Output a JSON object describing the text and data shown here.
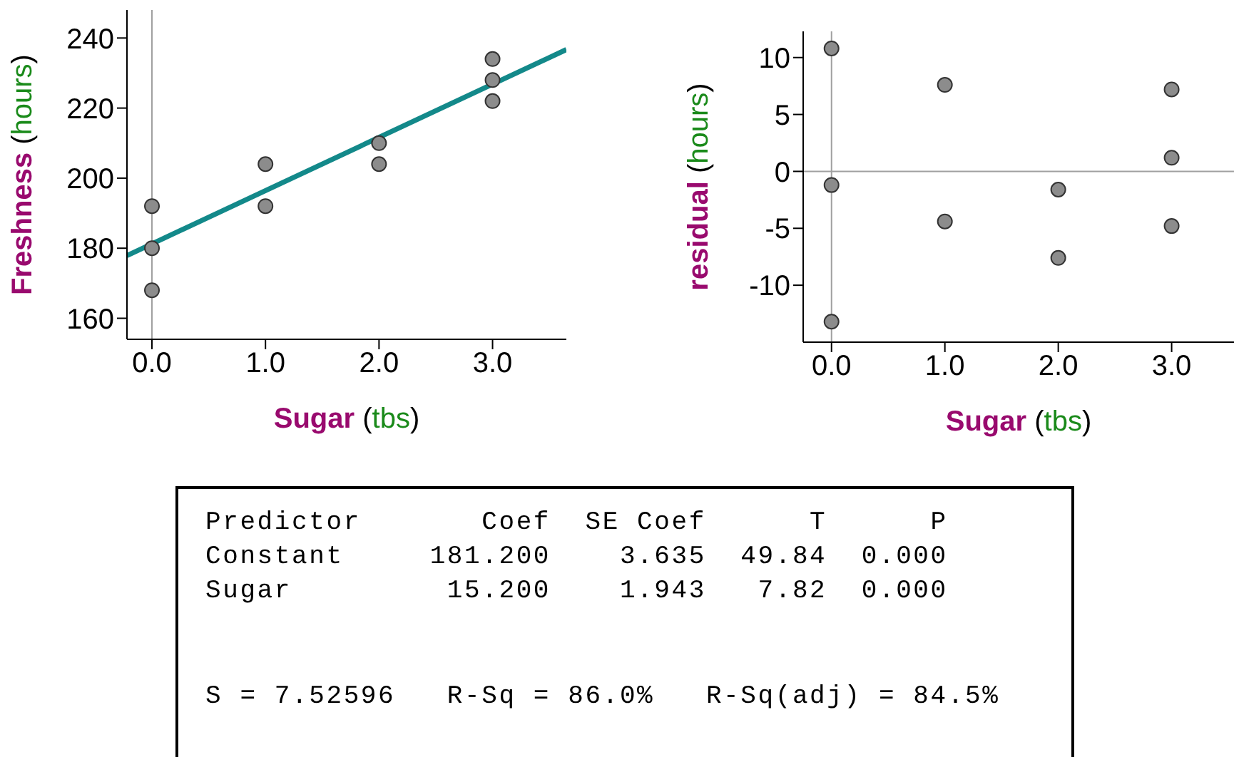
{
  "chart_data": [
    {
      "type": "scatter",
      "xlabel": "Sugar (tbs)",
      "ylabel": "Freshness (hours)",
      "xlim": [
        -0.22,
        3.65
      ],
      "ylim": [
        154,
        248
      ],
      "xticks": [
        {
          "value": 0,
          "label": "0.0"
        },
        {
          "value": 1,
          "label": "1.0"
        },
        {
          "value": 2,
          "label": "2.0"
        },
        {
          "value": 3,
          "label": "3.0"
        }
      ],
      "yticks": [
        160,
        180,
        200,
        220,
        240
      ],
      "grid": false,
      "marker": "circle",
      "series": [
        {
          "color": "#8c8c8c",
          "x": [
            0,
            0,
            0,
            1,
            1,
            2,
            2,
            3,
            3,
            3
          ],
          "values": [
            192,
            180,
            168,
            204,
            192,
            210,
            204,
            234,
            228,
            222
          ]
        },
        {
          "type": "line",
          "marker": "none",
          "color": "#13898a",
          "x": [
            -0.22,
            3.65
          ],
          "values": [
            177.9,
            236.7
          ]
        }
      ],
      "ref_lines": [
        {
          "axis": "x",
          "value": 0,
          "color": "#a0a0a0"
        }
      ]
    },
    {
      "type": "scatter",
      "xlabel": "Sugar (tbs)",
      "ylabel": "residual (hours)",
      "xlim": [
        -0.25,
        3.55
      ],
      "ylim": [
        -15,
        12.3
      ],
      "xticks": [
        {
          "value": 0,
          "label": "0.0"
        },
        {
          "value": 1,
          "label": "1.0"
        },
        {
          "value": 2,
          "label": "2.0"
        },
        {
          "value": 3,
          "label": "3.0"
        }
      ],
      "yticks": [
        -10,
        -5,
        0,
        5,
        10
      ],
      "grid": false,
      "marker": "circle",
      "series": [
        {
          "color": "#8c8c8c",
          "x": [
            0,
            0,
            0,
            1,
            1,
            2,
            2,
            3,
            3,
            3
          ],
          "values": [
            10.8,
            -1.2,
            -13.2,
            7.6,
            -4.4,
            -1.6,
            -7.6,
            7.2,
            1.2,
            -4.8
          ]
        }
      ],
      "ref_lines": [
        {
          "axis": "x",
          "value": 0,
          "color": "#a0a0a0"
        },
        {
          "axis": "y",
          "value": 0,
          "color": "#a0a0a0"
        }
      ]
    },
    {
      "type": "other",
      "annotations": [
        "Predictor       Coef  SE Coef      T      P",
        "Constant     181.200    3.635  49.84  0.000",
        "Sugar         15.200    1.943   7.82  0.000",
        "S = 7.52596   R-Sq = 86.0%   R-Sq(adj) = 84.5%"
      ]
    }
  ]
}
